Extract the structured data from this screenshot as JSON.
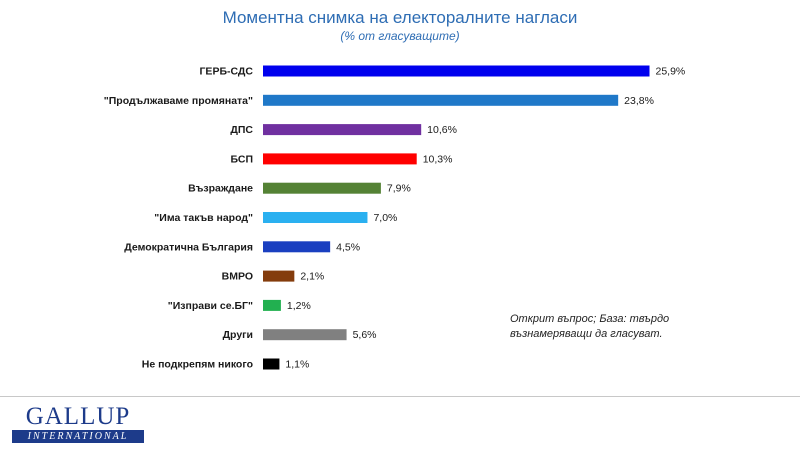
{
  "title": "Моментна снимка на електоралните нагласи",
  "subtitle": "(% от гласуващите)",
  "note": "Открит въпрос; База: твърдо възнамеряващи да гласуват.",
  "logo": {
    "main": "GALLUP",
    "sub": "INTERNATIONAL"
  },
  "chart_data": {
    "type": "bar",
    "orientation": "horizontal",
    "title": "Моментна снимка на електоралните нагласи",
    "subtitle": "(% от гласуващите)",
    "categories": [
      "ГЕРБ-СДС",
      "\"Продължаваме промяната\"",
      "ДПС",
      "БСП",
      "Възраждане",
      "\"Има такъв народ\"",
      "Демократична България",
      "ВМРО",
      "\"Изправи се.БГ\"",
      "Други",
      "Не подкрепям никого"
    ],
    "values": [
      25.9,
      23.8,
      10.6,
      10.3,
      7.9,
      7.0,
      4.5,
      2.1,
      1.2,
      5.6,
      1.1
    ],
    "value_labels": [
      "25,9%",
      "23,8%",
      "10,6%",
      "10,3%",
      "7,9%",
      "7,0%",
      "4,5%",
      "2,1%",
      "1,2%",
      "5,6%",
      "1,1%"
    ],
    "colors": [
      "#0000ee",
      "#1f78c8",
      "#7030a0",
      "#ff0000",
      "#548235",
      "#2ab0f0",
      "#1a3fc0",
      "#843c0c",
      "#22b050",
      "#808080",
      "#000000"
    ],
    "xlim": [
      0,
      26
    ],
    "grid": false,
    "legend": "none"
  }
}
